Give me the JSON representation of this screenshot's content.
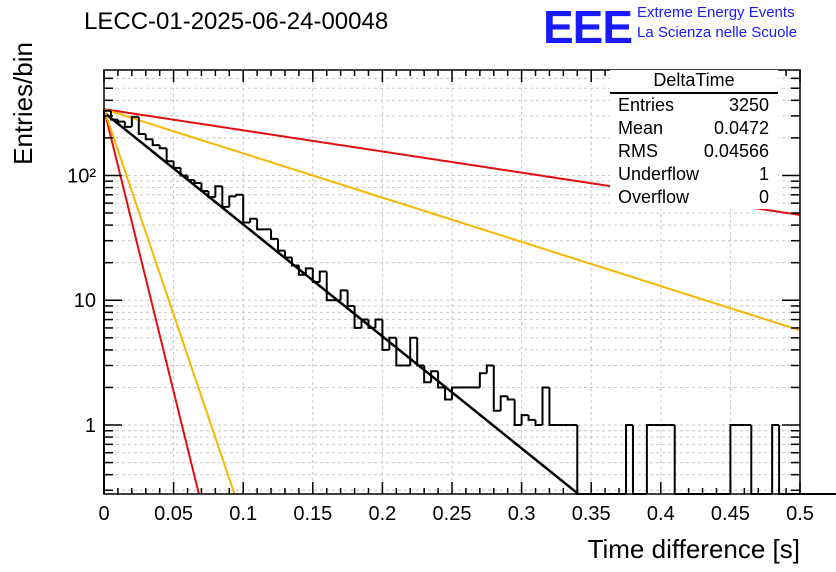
{
  "title": "LECC-01-2025-06-24-00048",
  "logo": {
    "text": "EEE",
    "line1": "Extreme Energy Events",
    "line2": "La Scienza nelle Scuole",
    "color": "#1a1aff"
  },
  "stats_box": {
    "name": "DeltaTime",
    "rows": [
      {
        "label": "Entries",
        "value": "3250"
      },
      {
        "label": "Mean",
        "value": "0.0472"
      },
      {
        "label": "RMS",
        "value": "0.04566"
      },
      {
        "label": "Underflow",
        "value": "1"
      },
      {
        "label": "Overflow",
        "value": "0"
      }
    ]
  },
  "chart_data": {
    "type": "histogram",
    "xlabel": "Time difference [s]",
    "ylabel": "Entries/bin",
    "xlim": [
      0,
      0.5
    ],
    "ylim": [
      0.28,
      700
    ],
    "yscale": "log",
    "grid": true,
    "x_ticks": [
      "0",
      "0.05",
      "0.1",
      "0.15",
      "0.2",
      "0.25",
      "0.3",
      "0.35",
      "0.4",
      "0.45",
      "0.5"
    ],
    "y_ticks": [
      {
        "value": 1,
        "label": "1"
      },
      {
        "value": 10,
        "label": "10"
      },
      {
        "value": 100,
        "label": "10²"
      }
    ],
    "histogram": {
      "bin_width": 0.005,
      "color": "#000000",
      "counts": [
        330,
        280,
        270,
        245,
        295,
        215,
        195,
        175,
        165,
        130,
        115,
        100,
        92,
        87,
        75,
        67,
        82,
        56,
        68,
        70,
        42,
        45,
        37,
        37,
        31,
        25,
        22,
        19,
        16,
        18,
        14,
        17,
        10,
        10,
        12,
        9,
        6,
        7,
        6,
        7,
        4,
        5,
        3,
        3,
        5,
        3,
        2.2,
        2.7,
        2,
        1.6,
        2,
        2,
        2,
        2,
        2.6,
        3,
        1.3,
        1.7,
        1.6,
        1,
        1.2,
        1.1,
        1,
        2,
        1,
        1,
        1,
        1,
        0,
        0,
        0,
        0,
        0,
        0,
        0,
        1,
        0,
        0,
        1,
        1,
        1,
        1,
        0,
        0,
        0,
        0,
        0,
        0,
        0,
        0,
        1,
        1,
        1,
        0,
        0,
        0,
        1,
        0,
        0,
        0,
        0,
        0,
        0,
        0,
        0,
        0,
        0,
        0,
        0,
        0
      ]
    },
    "curves": [
      {
        "label": "fit",
        "color": "#000000",
        "width": 2.5,
        "y0": 320,
        "tau": 0.0484
      },
      {
        "label": "red-slow",
        "color": "#e01010",
        "width": 2,
        "y0": 340,
        "tau": 0.256
      },
      {
        "label": "yellow-slow",
        "color": "#f5b800",
        "width": 2,
        "y0": 340,
        "tau": 0.1225
      },
      {
        "label": "red-fast",
        "color": "#e01010",
        "width": 2,
        "y0": 340,
        "tau": 0.0096
      },
      {
        "label": "yellow-fast",
        "color": "#f5b800",
        "width": 2,
        "y0": 340,
        "tau": 0.0132
      }
    ]
  }
}
